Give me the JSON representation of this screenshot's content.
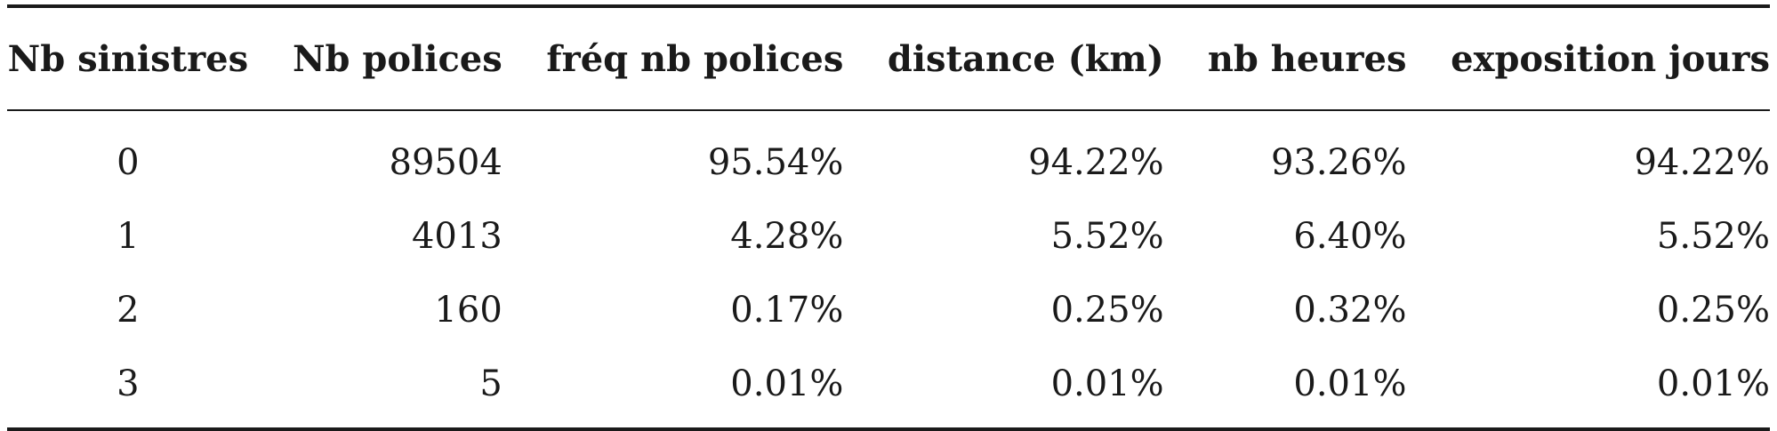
{
  "table": {
    "headers": [
      "Nb sinistres",
      "Nb polices",
      "fréq nb polices",
      "distance (km)",
      "nb heures",
      "exposition jours"
    ],
    "rows": [
      [
        "0",
        "89504",
        "95.54%",
        "94.22%",
        "93.26%",
        "94.22%"
      ],
      [
        "1",
        "4013",
        "4.28%",
        "5.52%",
        "6.40%",
        "5.52%"
      ],
      [
        "2",
        "160",
        "0.17%",
        "0.25%",
        "0.32%",
        "0.25%"
      ],
      [
        "3",
        "5",
        "0.01%",
        "0.01%",
        "0.01%",
        "0.01%"
      ]
    ]
  }
}
